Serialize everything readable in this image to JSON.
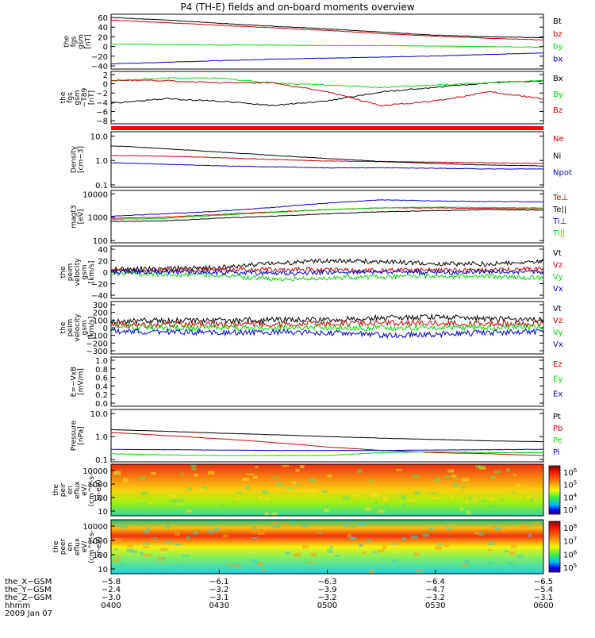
{
  "title": "P4 (TH-E) fields and on-board moments overview",
  "colors": {
    "black": "#000000",
    "red": "#cc0000",
    "green": "#00dd00",
    "blue": "#0000cc",
    "redbar": "#ff0000"
  },
  "chart_data": [
    {
      "type": "line",
      "panel": "fgs_gsm",
      "ylabel": [
        "the",
        "fgs",
        "gsm",
        "[nT]"
      ],
      "yticks": [
        "60",
        "40",
        "20",
        "0",
        "−20",
        "−40"
      ],
      "ylim": [
        -40,
        65
      ],
      "series": [
        {
          "name": "Bt",
          "color": "black",
          "y": [
            59,
            54,
            48,
            42,
            37,
            31,
            25,
            22,
            20
          ]
        },
        {
          "name": "bz",
          "color": "red",
          "y": [
            54,
            49,
            44,
            39,
            34,
            28,
            23,
            19,
            16
          ]
        },
        {
          "name": "by",
          "color": "green",
          "y": [
            8,
            7,
            6,
            6,
            5,
            5,
            4,
            3,
            2
          ]
        },
        {
          "name": "bx",
          "color": "blue",
          "y": [
            -30,
            -27,
            -24,
            -21,
            -19,
            -17,
            -15,
            -12,
            -9
          ]
        }
      ]
    },
    {
      "type": "line",
      "panel": "fgs_gsm_t89",
      "ylabel": [
        "the",
        "fgs",
        "gsm",
        "−T89",
        "[nT]"
      ],
      "yticks": [
        "2",
        "0",
        "−2",
        "−4",
        "−6",
        "−8"
      ],
      "ylim": [
        -9,
        2.5
      ],
      "series": [
        {
          "name": "Bx",
          "color": "black",
          "y": [
            -4.5,
            -3.5,
            -4,
            -5,
            -4,
            -2,
            -1,
            0,
            0.5
          ]
        },
        {
          "name": "By",
          "color": "green",
          "y": [
            0.5,
            1,
            1,
            0,
            -0.5,
            -1,
            -0.5,
            0,
            0.5
          ]
        },
        {
          "name": "Bz",
          "color": "red",
          "y": [
            0.5,
            0.5,
            0,
            0,
            -2,
            -5,
            -4,
            -2,
            -3.5
          ]
        }
      ]
    },
    {
      "type": "line",
      "panel": "density",
      "scale": "log",
      "ylabel": [
        "Density",
        "[cm−3]"
      ],
      "yticks": [
        "10.0",
        "1.0",
        "0.1"
      ],
      "ylim": [
        0.08,
        15
      ],
      "series": [
        {
          "name": "Ne",
          "color": "red",
          "y": [
            1.6,
            1.5,
            1.3,
            1.1,
            0.95,
            0.9,
            0.85,
            0.8,
            0.75
          ]
        },
        {
          "name": "Ni",
          "color": "black",
          "y": [
            4,
            3,
            2.2,
            1.6,
            1.2,
            0.9,
            0.75,
            0.65,
            0.6
          ]
        },
        {
          "name": "Npot",
          "color": "blue",
          "y": [
            0.8,
            0.7,
            0.6,
            0.55,
            0.5,
            0.5,
            0.48,
            0.45,
            0.45
          ]
        }
      ]
    },
    {
      "type": "line",
      "panel": "temperature",
      "scale": "log",
      "ylabel": [
        "magt3",
        "[eV]"
      ],
      "yticks": [
        "10000",
        "1000",
        "100"
      ],
      "ylim": [
        80,
        14000
      ],
      "series": [
        {
          "name": "Te⊥",
          "color": "red",
          "y": [
            900,
            1000,
            1300,
            1700,
            2100,
            2500,
            2500,
            2400,
            2300
          ]
        },
        {
          "name": "Te||",
          "color": "black",
          "y": [
            650,
            700,
            900,
            1100,
            1400,
            1700,
            1900,
            2100,
            2000
          ]
        },
        {
          "name": "Ti⊥",
          "color": "blue",
          "y": [
            1100,
            1400,
            1800,
            2600,
            4000,
            5500,
            5000,
            4700,
            4500
          ]
        },
        {
          "name": "Ti||",
          "color": "green",
          "y": [
            800,
            900,
            1200,
            1600,
            2100,
            2500,
            2700,
            2600,
            2500
          ]
        }
      ]
    },
    {
      "type": "line",
      "panel": "peim_velocity_1",
      "ylabel": [
        "the",
        "peim",
        "velocity",
        "gsm",
        "[km/s]"
      ],
      "yticks": [
        "40",
        "20",
        "0",
        "−20",
        "−40"
      ],
      "ylim": [
        -45,
        45
      ],
      "series": [
        {
          "name": "Vt",
          "color": "black",
          "y": [
            5,
            6,
            8,
            15,
            20,
            18,
            15,
            14,
            20
          ]
        },
        {
          "name": "Vz",
          "color": "red",
          "y": [
            2,
            3,
            4,
            5,
            4,
            3,
            3,
            3,
            6
          ]
        },
        {
          "name": "Vy",
          "color": "green",
          "y": [
            -2,
            -4,
            -6,
            -12,
            -10,
            -8,
            -6,
            -7,
            -10
          ]
        },
        {
          "name": "Vx",
          "color": "blue",
          "y": [
            0,
            1,
            0,
            -2,
            0,
            1,
            0,
            1,
            0
          ]
        }
      ]
    },
    {
      "type": "line",
      "panel": "peim_velocity_2",
      "ylabel": [
        "the",
        "peim",
        "velocity",
        "gsm",
        "[km/s]"
      ],
      "yticks": [
        "300",
        "200",
        "100",
        "0",
        "−100",
        "−200",
        "−300"
      ],
      "ylim": [
        -320,
        320
      ],
      "series": [
        {
          "name": "Vt",
          "color": "black",
          "y": [
            80,
            85,
            90,
            95,
            100,
            120,
            130,
            110,
            100
          ]
        },
        {
          "name": "Vz",
          "color": "red",
          "y": [
            30,
            35,
            40,
            45,
            50,
            55,
            55,
            50,
            50
          ]
        },
        {
          "name": "Vy",
          "color": "green",
          "y": [
            5,
            5,
            0,
            0,
            5,
            0,
            0,
            5,
            5
          ]
        },
        {
          "name": "Vx",
          "color": "blue",
          "y": [
            -40,
            -50,
            -60,
            -50,
            -60,
            -90,
            -80,
            -60,
            -50
          ]
        }
      ]
    },
    {
      "type": "line",
      "panel": "efield",
      "ylabel": [
        "E=−VxB",
        "[mV/m]"
      ],
      "yticks": [
        "1.0",
        "0.8",
        "0.6",
        "0.4",
        "0.2",
        "0.0"
      ],
      "ylim": [
        0,
        1
      ],
      "series": [
        {
          "name": "Ez",
          "color": "red",
          "y": []
        },
        {
          "name": "Ey",
          "color": "green",
          "y": []
        },
        {
          "name": "Ex",
          "color": "blue",
          "y": []
        }
      ]
    },
    {
      "type": "line",
      "panel": "pressure",
      "scale": "log",
      "ylabel": [
        "Pressure",
        "[nPa]"
      ],
      "yticks": [
        "10.0",
        "1.0",
        "0.1"
      ],
      "ylim": [
        0.08,
        15
      ],
      "series": [
        {
          "name": "Pt",
          "color": "black",
          "y": [
            2,
            1.7,
            1.4,
            1.2,
            1,
            0.85,
            0.75,
            0.65,
            0.6
          ]
        },
        {
          "name": "Pb",
          "color": "red",
          "y": [
            1.5,
            1.1,
            0.8,
            0.55,
            0.35,
            0.25,
            0.2,
            0.18,
            0.15
          ]
        },
        {
          "name": "Pe",
          "color": "green",
          "y": [
            0.18,
            0.16,
            0.15,
            0.15,
            0.15,
            0.2,
            0.22,
            0.2,
            0.2
          ]
        },
        {
          "name": "Pi",
          "color": "blue",
          "y": [
            0.28,
            0.27,
            0.26,
            0.25,
            0.25,
            0.25,
            0.26,
            0.27,
            0.28
          ]
        }
      ]
    },
    {
      "type": "heatmap",
      "panel": "peir_en_eflux",
      "ylabel": [
        "the",
        "peir",
        "en",
        "eflux",
        "eV/",
        "(cm^2-s-",
        "sr-eV)"
      ],
      "yticks": [
        "10000",
        "1000",
        "100",
        "10"
      ],
      "colorbar_ticks": [
        "10^6",
        "10^5",
        "10^4",
        "10^3"
      ]
    },
    {
      "type": "heatmap",
      "panel": "peer_en_eflux",
      "ylabel": [
        "the",
        "peer",
        "en",
        "eflux",
        "eV/",
        "(cm^2-s-",
        "sr-eV)"
      ],
      "yticks": [
        "10000",
        "1000",
        "100",
        "10"
      ],
      "colorbar_ticks": [
        "10^8",
        "10^7",
        "10^6",
        "10^5"
      ]
    }
  ],
  "xaxis": {
    "rows": [
      {
        "label": "the_X−GSM",
        "values": [
          "−5.8",
          "−6.1",
          "−6.3",
          "−6.4",
          "−6.5"
        ]
      },
      {
        "label": "the_Y−GSM",
        "values": [
          "−2.4",
          "−3.2",
          "−3.9",
          "−4.7",
          "−5.4"
        ]
      },
      {
        "label": "the_Z−GSM",
        "values": [
          "−3.0",
          "−3.1",
          "−3.2",
          "−3.2",
          "−3.1"
        ]
      },
      {
        "label": "hhmm",
        "values": [
          "0400",
          "0430",
          "0500",
          "0530",
          "0600"
        ]
      }
    ],
    "date": "2009 Jan 07"
  }
}
